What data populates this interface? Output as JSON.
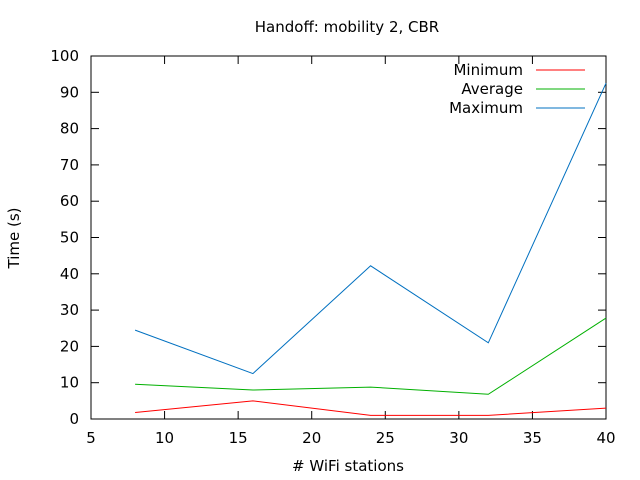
{
  "chart_data": {
    "type": "line",
    "title": "Handoff: mobility 2, CBR",
    "xlabel": "# WiFi stations",
    "ylabel": "Time (s)",
    "xlim": [
      5,
      40
    ],
    "ylim": [
      0,
      100
    ],
    "xticks": [
      5,
      10,
      15,
      20,
      25,
      30,
      35,
      40
    ],
    "yticks": [
      0,
      10,
      20,
      30,
      40,
      50,
      60,
      70,
      80,
      90,
      100
    ],
    "x": [
      8,
      16,
      24,
      32,
      40
    ],
    "series": [
      {
        "name": "Minimum",
        "color": "#ff0000",
        "values": [
          1.8,
          5.0,
          1.0,
          1.0,
          3.0
        ]
      },
      {
        "name": "Average",
        "color": "#00b000",
        "values": [
          9.6,
          8.0,
          8.8,
          6.8,
          27.8
        ]
      },
      {
        "name": "Maximum",
        "color": "#0070c0",
        "values": [
          24.5,
          12.5,
          42.2,
          21.0,
          92.5
        ]
      }
    ],
    "grid": false,
    "legend_position": "top-right"
  }
}
